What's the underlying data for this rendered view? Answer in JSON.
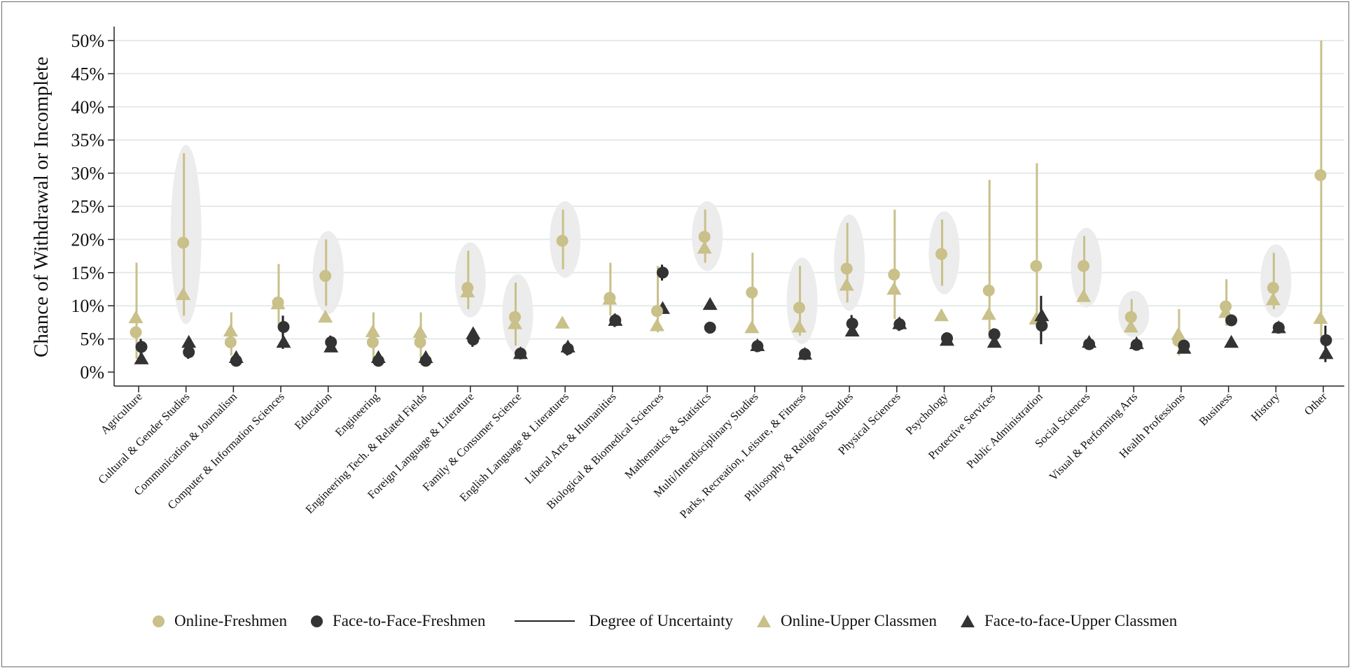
{
  "chart_data": {
    "type": "scatter",
    "ylabel": "Chance of Withdrawal or Incomplete",
    "ylim": [
      0,
      50
    ],
    "yticks": [
      "0%",
      "5%",
      "10%",
      "15%",
      "20%",
      "25%",
      "30%",
      "35%",
      "40%",
      "45%",
      "50%"
    ],
    "grid": true,
    "legend_position": "bottom",
    "colors": {
      "online": "#c9c08a",
      "face_to_face": "#333333",
      "uncertainty": "#222222",
      "highlight": "#ececec",
      "grid": "#e3ebe8"
    },
    "categories": [
      "Agriculture",
      "Cultural & Gender Studies",
      "Communication & Journalism",
      "Computer & Information Sciences",
      "Education",
      "Engineering",
      "Engineering Tech. & Related Fields",
      "Foreign Language & Literature",
      "Family & Consumer Science",
      "English Language & Literatures",
      "Liberal Arts & Humanities",
      "Biological & Biomedical Sciences",
      "Mathematics & Statistics",
      "Multi/Interdisciplinary Studies",
      "Parks, Recreation, Leisure, & Fitness",
      "Philosophy & Religious Studies",
      "Physical Sciences",
      "Psychology",
      "Protective Services",
      "Public Administration",
      "Social Sciences",
      "Visual & Performing Arts",
      "Health Professions",
      "Business",
      "History",
      "Other"
    ],
    "highlighted": [
      "Cultural & Gender Studies",
      "Education",
      "Foreign Language & Literature",
      "Family & Consumer Science",
      "English Language & Literatures",
      "Mathematics & Statistics",
      "Parks, Recreation, Leisure, & Fitness",
      "Philosophy & Religious Studies",
      "Psychology",
      "Social Sciences",
      "Visual & Performing Arts",
      "History"
    ],
    "series": [
      {
        "name": "Online-Freshmen",
        "marker": "circle",
        "color": "#c9c08a",
        "values": [
          6,
          19.5,
          4.5,
          10.5,
          14.5,
          4.5,
          4.5,
          12.7,
          8.3,
          19.8,
          11.2,
          9.2,
          20.4,
          12,
          9.7,
          15.6,
          14.7,
          17.8,
          12.3,
          16,
          16,
          8.3,
          4.7,
          9.9,
          12.7,
          29.7
        ],
        "ci": [
          [
            2,
            16.5
          ],
          [
            8.5,
            33
          ],
          [
            2.5,
            9
          ],
          [
            7,
            16.3
          ],
          [
            10,
            20
          ],
          [
            2,
            9
          ],
          [
            2,
            9
          ],
          [
            9.5,
            18.3
          ],
          [
            4,
            13.5
          ],
          [
            15.5,
            24.5
          ],
          [
            8.5,
            16.5
          ],
          [
            6,
            16
          ],
          [
            16.5,
            24.5
          ],
          [
            7,
            18
          ],
          [
            5.5,
            16
          ],
          [
            10.5,
            22.5
          ],
          [
            8,
            24.5
          ],
          [
            13,
            23
          ],
          [
            5,
            29
          ],
          [
            7,
            31.5
          ],
          [
            11,
            20.5
          ],
          [
            6.5,
            11
          ],
          [
            2.5,
            9.5
          ],
          [
            7,
            14
          ],
          [
            9.5,
            18
          ],
          [
            5,
            50
          ]
        ]
      },
      {
        "name": "Face-to-Face-Freshmen",
        "marker": "circle",
        "color": "#333333",
        "values": [
          3.8,
          3,
          1.7,
          6.8,
          4.5,
          1.7,
          1.7,
          4.9,
          2.8,
          3.5,
          7.8,
          15,
          6.7,
          3.9,
          2.7,
          7.3,
          7.2,
          5.1,
          5.7,
          7,
          4.2,
          4.1,
          4,
          7.8,
          6.7,
          4.8
        ],
        "ci": [
          [
            2.5,
            5
          ],
          [
            2,
            4
          ],
          [
            1,
            2.5
          ],
          [
            5.2,
            8.5
          ],
          [
            3.5,
            5.5
          ],
          [
            1,
            2.5
          ],
          [
            1,
            2.5
          ],
          [
            3.8,
            6
          ],
          [
            2,
            3.5
          ],
          [
            2.5,
            4.5
          ],
          [
            6.8,
            8.8
          ],
          [
            13.8,
            16.2
          ],
          [
            5.8,
            7.6
          ],
          [
            3,
            4.8
          ],
          [
            2,
            3.4
          ],
          [
            6,
            8.6
          ],
          [
            6.2,
            8.2
          ],
          [
            4.2,
            6
          ],
          [
            4.8,
            6.6
          ],
          [
            4.2,
            9.8
          ],
          [
            3.4,
            5
          ],
          [
            3.3,
            4.9
          ],
          [
            3.2,
            4.8
          ],
          [
            7,
            8.6
          ],
          [
            5.8,
            7.6
          ],
          [
            1.5,
            7
          ]
        ]
      },
      {
        "name": "Online-Upper Classmen",
        "marker": "triangle",
        "color": "#c9c08a",
        "values": [
          8.2,
          11.7,
          6.2,
          10.3,
          8.3,
          6.1,
          6,
          12.1,
          7.3,
          7.4,
          11,
          7,
          18.7,
          6.7,
          6.8,
          13.1,
          12.5,
          8.5,
          8.7,
          8,
          11.4,
          6.8,
          5.7,
          9,
          10.9,
          8.1
        ],
        "ci": null
      },
      {
        "name": "Face-to-face-Upper Classmen",
        "marker": "triangle",
        "color": "#333333",
        "values": [
          2,
          4.5,
          2.2,
          4.5,
          3.8,
          2.2,
          2.2,
          5.8,
          2.8,
          3.8,
          7.8,
          9.6,
          10.2,
          4,
          2.7,
          6.2,
          7.3,
          4.8,
          4.5,
          8.5,
          4.5,
          4.3,
          3.6,
          4.5,
          6.7,
          2.8
        ],
        "ci": [
          null,
          null,
          null,
          [
            3.5,
            8.5
          ],
          null,
          null,
          null,
          null,
          null,
          null,
          null,
          null,
          null,
          null,
          null,
          null,
          null,
          null,
          null,
          [
            5,
            11.5
          ],
          null,
          null,
          null,
          null,
          null,
          null
        ]
      }
    ]
  },
  "legend": {
    "online_freshmen": "Online-Freshmen",
    "f2f_freshmen": "Face-to-Face-Freshmen",
    "uncertainty": "Degree of Uncertainty",
    "online_upper": "Online-Upper Classmen",
    "f2f_upper": "Face-to-face-Upper Classmen"
  }
}
